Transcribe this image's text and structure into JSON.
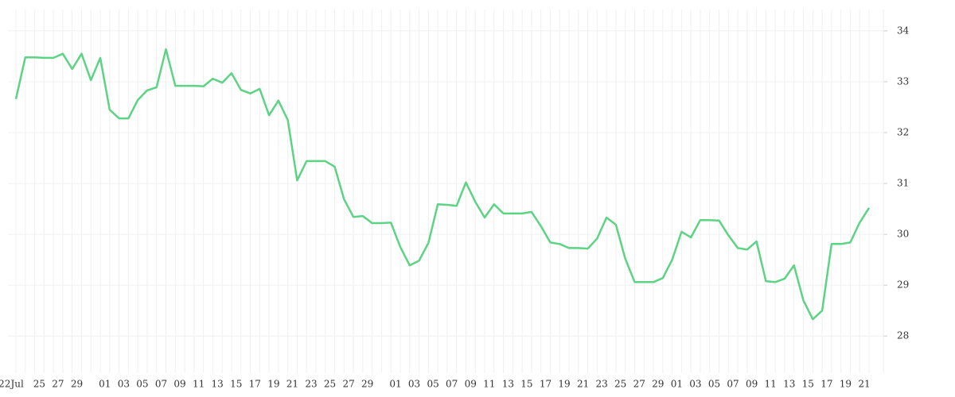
{
  "chart_data": {
    "type": "line",
    "categories": [
      "22Jul",
      null,
      null,
      "25",
      null,
      "27",
      null,
      "29",
      null,
      null,
      "01",
      null,
      "03",
      null,
      "05",
      null,
      "07",
      null,
      "09",
      null,
      "11",
      null,
      "13",
      null,
      "15",
      null,
      "17",
      null,
      "19",
      null,
      "21",
      null,
      "23",
      null,
      "25",
      null,
      "27",
      null,
      "29",
      null,
      null,
      "01",
      null,
      "03",
      null,
      "05",
      null,
      "07",
      null,
      "09",
      null,
      "11",
      null,
      "13",
      null,
      "15",
      null,
      "17",
      null,
      "19",
      null,
      "21",
      null,
      "23",
      null,
      "25",
      null,
      "27",
      null,
      "29",
      null,
      "01",
      null,
      "03",
      null,
      "05",
      null,
      "07",
      null,
      "09",
      null,
      "11",
      null,
      "13",
      null,
      "15",
      null,
      "17",
      null,
      "19",
      null,
      "21"
    ],
    "series": [
      {
        "color": "#5dd384",
        "values": [
          32.66,
          33.48,
          33.48,
          33.47,
          33.47,
          33.55,
          33.25,
          33.55,
          33.03,
          33.47,
          32.45,
          32.28,
          32.28,
          32.64,
          32.83,
          32.89,
          33.64,
          32.92,
          32.92,
          32.92,
          32.91,
          33.06,
          32.98,
          33.17,
          32.84,
          32.77,
          32.86,
          32.34,
          32.63,
          32.25,
          31.06,
          31.44,
          31.44,
          31.44,
          31.33,
          30.69,
          30.34,
          30.36,
          30.22,
          30.22,
          30.23,
          29.75,
          29.39,
          29.48,
          29.83,
          30.59,
          30.58,
          30.56,
          31.02,
          30.64,
          30.33,
          30.59,
          30.41,
          30.41,
          30.41,
          30.44,
          30.16,
          29.84,
          29.81,
          29.73,
          29.73,
          29.72,
          29.92,
          30.33,
          30.19,
          29.52,
          29.06,
          29.06,
          29.06,
          29.14,
          29.5,
          30.05,
          29.94,
          30.28,
          30.28,
          30.27,
          29.98,
          29.73,
          29.7,
          29.86,
          29.08,
          29.06,
          29.13,
          29.39,
          28.7,
          28.33,
          28.5,
          29.81,
          29.81,
          29.84,
          30.23,
          30.52
        ]
      }
    ],
    "ylim": [
      27.27,
      34.42
    ],
    "yticks": [
      28,
      29,
      30,
      31,
      32,
      33,
      34
    ],
    "grid": true,
    "y_axis_side": "right"
  }
}
